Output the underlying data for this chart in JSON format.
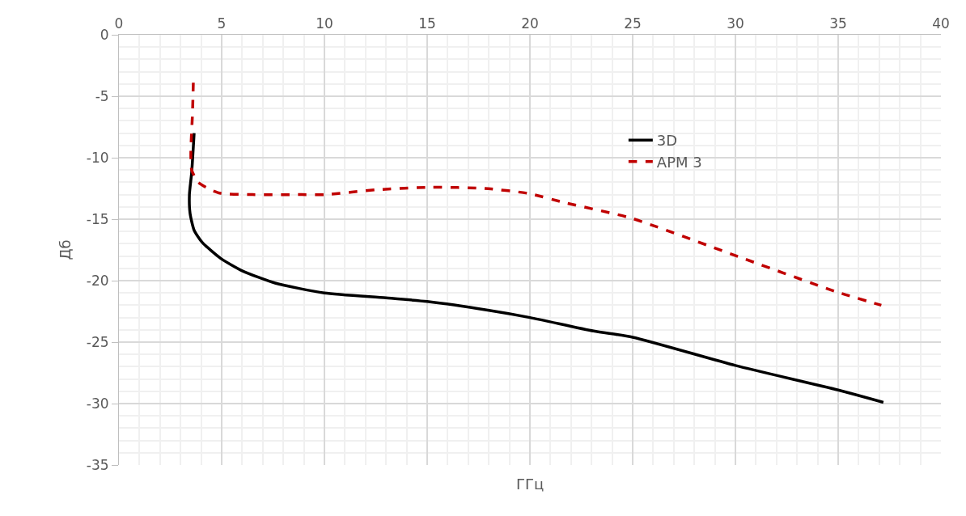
{
  "chart_data": {
    "type": "line",
    "xlabel": "ГГц",
    "ylabel": "Дб",
    "xlim": [
      0,
      40
    ],
    "xticks": [
      0,
      5,
      10,
      15,
      20,
      25,
      30,
      35,
      40
    ],
    "ylim": [
      -35,
      0
    ],
    "yticks": [
      0,
      -5,
      -10,
      -15,
      -20,
      -25,
      -30,
      -35
    ],
    "grid": true,
    "legend": "right",
    "marker": "none",
    "series": [
      {
        "name": "3D",
        "color": "#000000",
        "line_style": "solid",
        "x": [
          3.66,
          3.54,
          3.43,
          3.46,
          3.66,
          4.06,
          4.96,
          6.0,
          7.6,
          10,
          13,
          15,
          17.95,
          20,
          23.1,
          25,
          30,
          35,
          37.2
        ],
        "values": [
          -8.0,
          -11.2,
          -13.0,
          -14.5,
          -15.9,
          -16.9,
          -18.2,
          -19.2,
          -20.2,
          -21.0,
          -21.4,
          -21.7,
          -22.4,
          -23.0,
          -24.1,
          -24.6,
          -26.9,
          -28.9,
          -29.9
        ]
      },
      {
        "name": "АРМ 3",
        "color": "#c00000",
        "line_style": "dashed",
        "x": [
          3.62,
          3.58,
          3.5,
          3.54,
          3.86,
          4.45,
          4.96,
          6.5,
          8.9,
          10,
          12.6,
          15.2,
          17.8,
          19.9,
          21.8,
          24.9,
          29.9,
          34.9,
          37.1
        ],
        "values": [
          -3.9,
          -6.4,
          -9.5,
          -11.0,
          -12.0,
          -12.6,
          -12.9,
          -13.0,
          -13.0,
          -13.0,
          -12.6,
          -12.4,
          -12.5,
          -12.9,
          -13.7,
          -14.9,
          -17.9,
          -20.9,
          -22.0
        ]
      }
    ]
  }
}
